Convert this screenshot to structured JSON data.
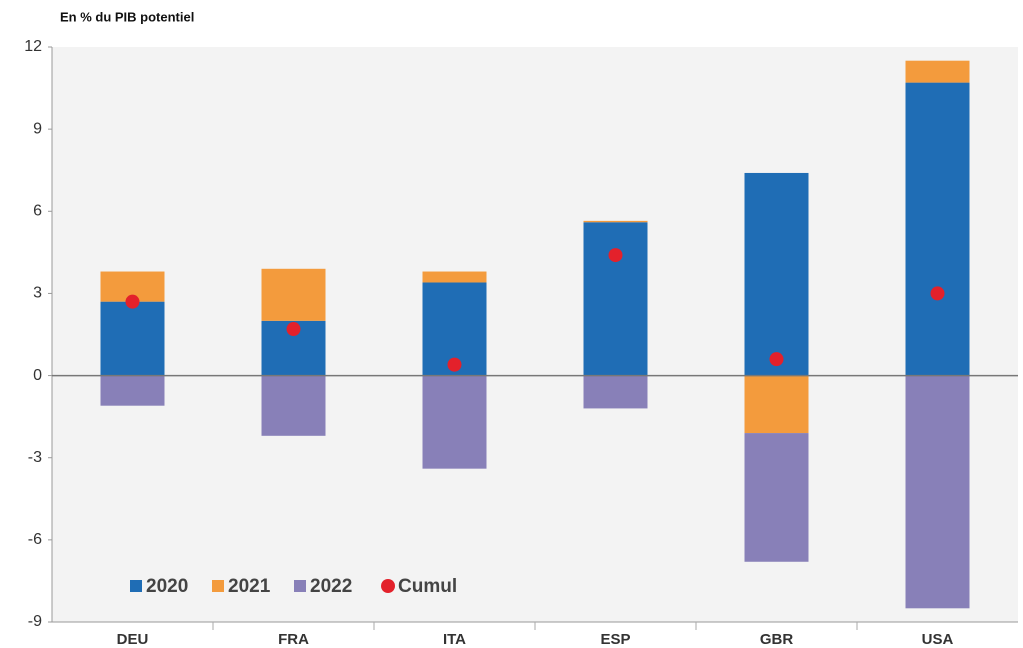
{
  "chart_data": {
    "type": "bar",
    "stacked": true,
    "title": "En % du PIB potentiel",
    "categories": [
      "DEU",
      "FRA",
      "ITA",
      "ESP",
      "GBR",
      "USA"
    ],
    "series": [
      {
        "name": "2020",
        "color": "#1f6db5",
        "values": [
          2.7,
          2.0,
          3.4,
          5.6,
          7.4,
          10.7
        ]
      },
      {
        "name": "2021",
        "color": "#f39b3d",
        "values": [
          1.1,
          1.9,
          0.4,
          0.05,
          -2.1,
          0.8
        ]
      },
      {
        "name": "2022",
        "color": "#8880b8",
        "values": [
          -1.1,
          -2.2,
          -3.4,
          -1.2,
          -4.7,
          -8.5
        ]
      },
      {
        "name": "Cumul",
        "type": "scatter",
        "color": "#e3212b",
        "values": [
          2.7,
          1.7,
          0.4,
          4.4,
          0.6,
          3.0
        ]
      }
    ],
    "ylim": [
      -9,
      12
    ],
    "yticks": [
      -9,
      -6,
      -3,
      0,
      3,
      6,
      9,
      12
    ],
    "grid": false,
    "legend": "bottom-left"
  }
}
